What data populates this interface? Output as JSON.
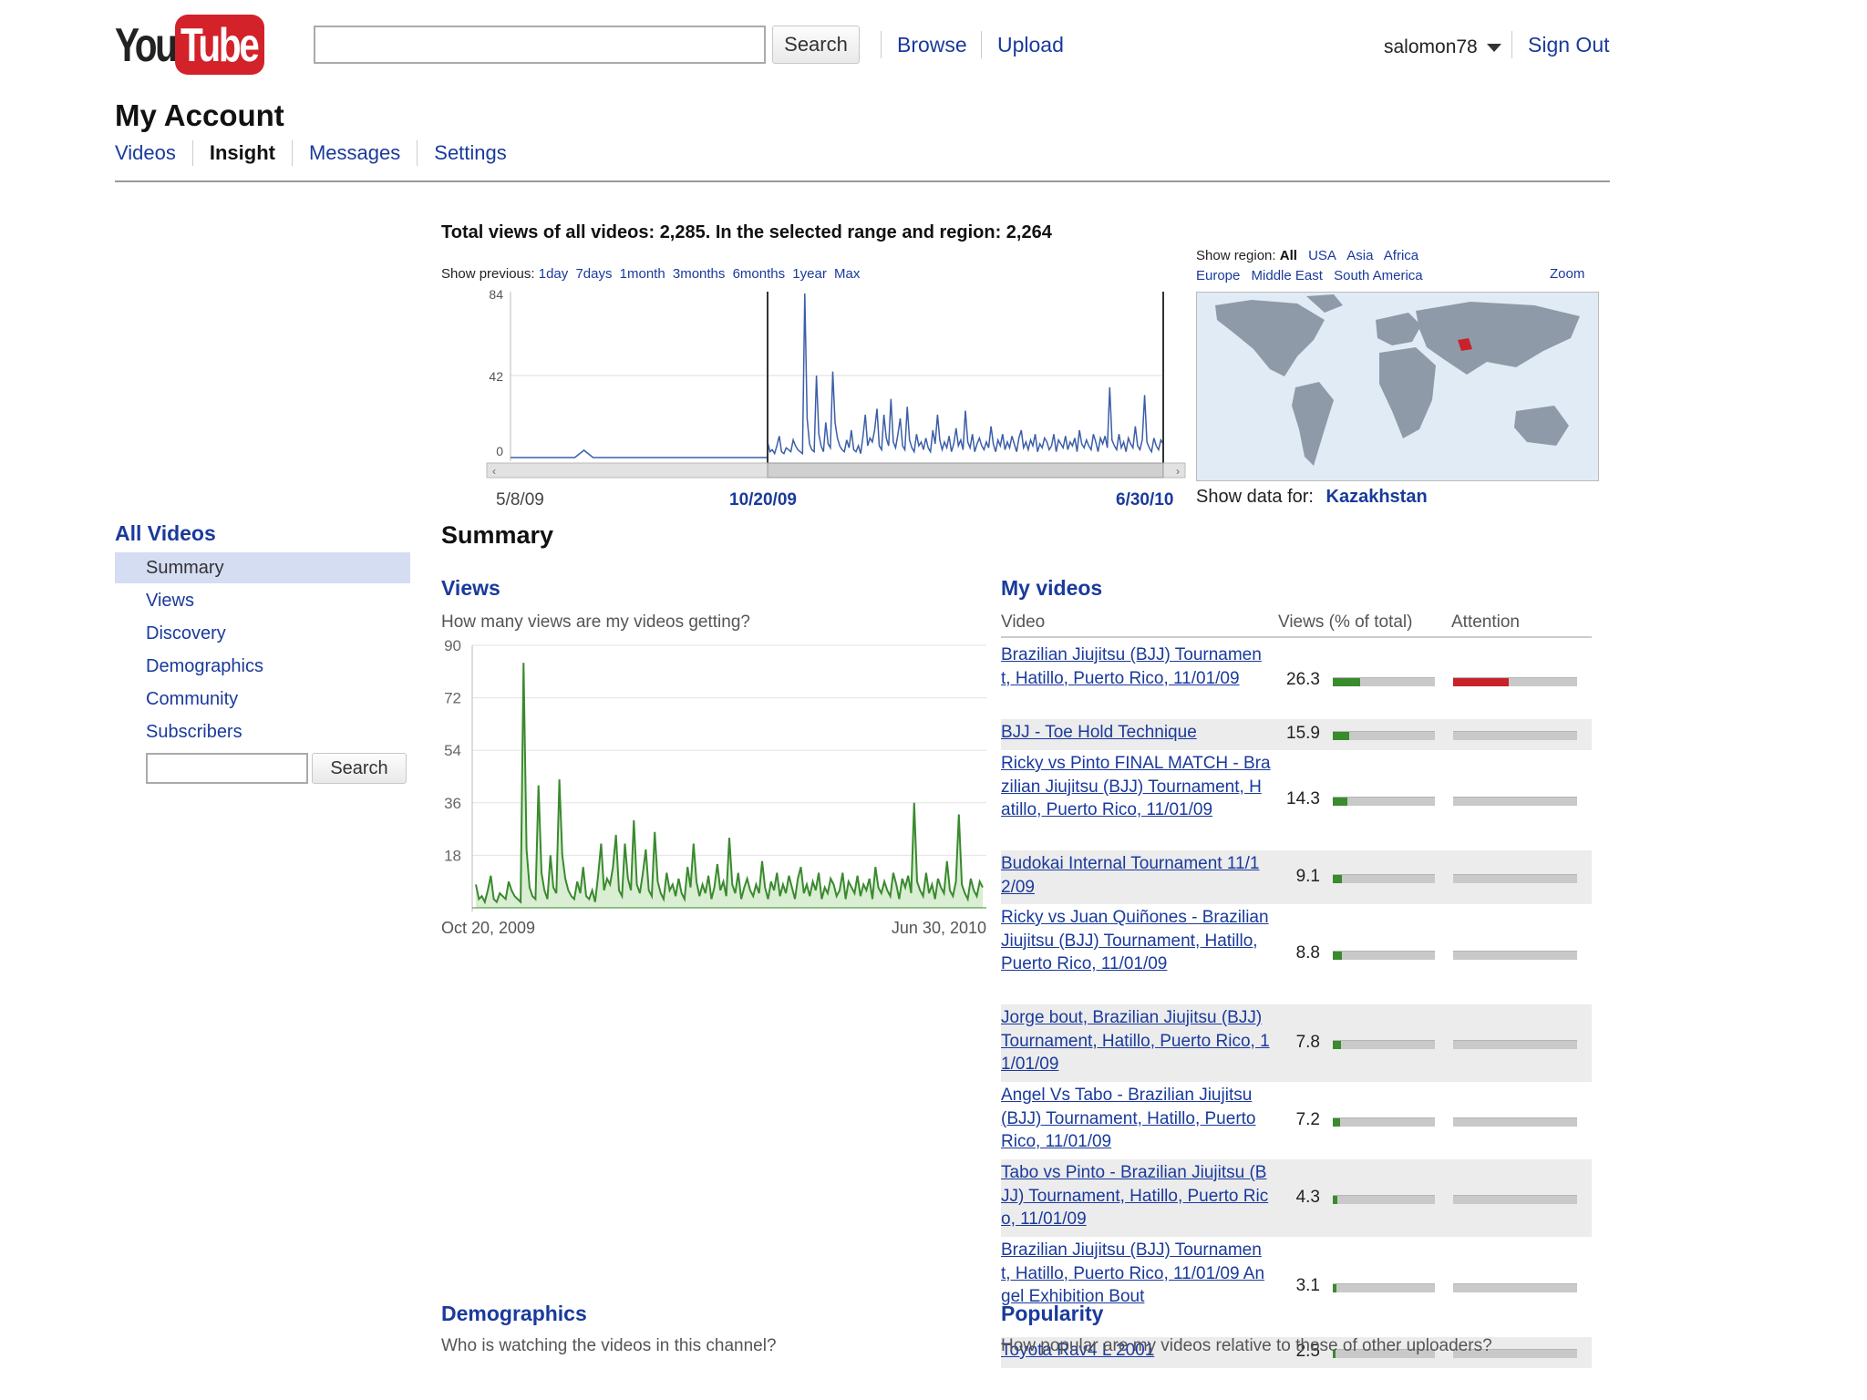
{
  "header": {
    "logo_you": "You",
    "logo_tube": "Tube",
    "search_button": "Search",
    "browse": "Browse",
    "upload": "Upload",
    "username": "salomon78",
    "sign_out": "Sign Out"
  },
  "account": {
    "title": "My Account",
    "tabs": [
      "Videos",
      "Insight",
      "Messages",
      "Settings"
    ],
    "active_tab": "Insight"
  },
  "totals_text": "Total views of all videos:  2,285.  In the selected range and region:  2,264",
  "timeline": {
    "show_previous_label": "Show previous:",
    "ranges": [
      "1day",
      "7days",
      "1month",
      "3months",
      "6months",
      "1year",
      "Max"
    ],
    "y_ticks": [
      "84",
      "42",
      "0"
    ],
    "start_date": "5/8/09",
    "range_start": "10/20/09",
    "range_end": "6/30/10"
  },
  "map": {
    "show_region_label": "Show region:",
    "regions_row1": [
      "All",
      "USA",
      "Asia",
      "Africa"
    ],
    "regions_row2": [
      "Europe",
      "Middle East",
      "South America"
    ],
    "zoom": "Zoom",
    "show_data_label": "Show data for:",
    "show_data_value": "Kazakhstan"
  },
  "sidebar": {
    "heading": "All Videos",
    "items": [
      "Summary",
      "Views",
      "Discovery",
      "Demographics",
      "Community",
      "Subscribers"
    ],
    "active": "Summary",
    "search_button": "Search"
  },
  "summary": {
    "title": "Summary",
    "views_heading": "Views",
    "views_question": "How many views are my videos getting?",
    "demographics_heading": "Demographics",
    "demographics_question": "Who is watching the videos in this channel?",
    "popularity_heading": "Popularity",
    "popularity_question": "How popular are my videos relative to those of other uploaders?"
  },
  "chart_data": {
    "type": "line",
    "ylim": [
      0,
      90
    ],
    "y_ticks": [
      "90",
      "72",
      "54",
      "36",
      "18"
    ],
    "x_labels": [
      "Oct 20, 2009",
      "Jun 30, 2010"
    ],
    "color": "#3a8a2e",
    "fill": "#d9eed3",
    "values": [
      8,
      3,
      4,
      2,
      6,
      11,
      3,
      2,
      5,
      4,
      3,
      9,
      6,
      4,
      3,
      2,
      84,
      20,
      7,
      4,
      3,
      42,
      12,
      6,
      3,
      18,
      7,
      5,
      44,
      18,
      10,
      6,
      4,
      3,
      9,
      5,
      14,
      4,
      3,
      6,
      2,
      11,
      22,
      6,
      10,
      8,
      14,
      25,
      6,
      4,
      22,
      10,
      6,
      30,
      8,
      5,
      12,
      20,
      6,
      4,
      26,
      9,
      5,
      3,
      12,
      6,
      8,
      4,
      10,
      5,
      3,
      14,
      7,
      22,
      9,
      4,
      8,
      5,
      11,
      3,
      7,
      15,
      6,
      9,
      4,
      24,
      8,
      5,
      12,
      3,
      7,
      10,
      6,
      4,
      8,
      5,
      16,
      7,
      3,
      9,
      6,
      12,
      4,
      8,
      5,
      11,
      7,
      3,
      10,
      14,
      5,
      8,
      4,
      9,
      6,
      12,
      3,
      7,
      5,
      10,
      8,
      4,
      6,
      12,
      3,
      9,
      7,
      5,
      11,
      4,
      8,
      6,
      10,
      3,
      14,
      7,
      5,
      9,
      6,
      4,
      12,
      8,
      3,
      10,
      7,
      11,
      5,
      36,
      9,
      6,
      4,
      12,
      5,
      8,
      3,
      10,
      7,
      5,
      16,
      6,
      4,
      9,
      32,
      8,
      5,
      3,
      10,
      6,
      4,
      9,
      7
    ]
  },
  "my_videos": {
    "heading": "My videos",
    "columns": [
      "Video",
      "Views (% of total)",
      "Attention"
    ],
    "rows": [
      {
        "title": "Brazilian Jiujitsu (BJJ) Tournament, Hatillo, Puerto Rico, 11/01/09",
        "views": "26.3",
        "views_pct": 26.3,
        "attention": 0.45,
        "attention_color": "#c8232c"
      },
      {
        "title": "BJJ - Toe Hold Technique",
        "views": "15.9",
        "views_pct": 15.9,
        "attention": 0,
        "attention_color": "#999999"
      },
      {
        "title": "Ricky vs Pinto FINAL MATCH - Brazilian Jiujitsu (BJJ) Tournament, Hatillo, Puerto Rico, 11/01/09",
        "views": "14.3",
        "views_pct": 14.3,
        "attention": 0,
        "attention_color": "#999999"
      },
      {
        "title": "Budokai Internal Tournament 11/12/09",
        "views": "9.1",
        "views_pct": 9.1,
        "attention": 0,
        "attention_color": "#999999"
      },
      {
        "title": "Ricky vs Juan Quiñones - Brazilian Jiujitsu (BJJ) Tournament, Hatillo, Puerto Rico, 11/01/09",
        "views": "8.8",
        "views_pct": 8.8,
        "attention": 0,
        "attention_color": "#999999"
      },
      {
        "title": "Jorge bout, Brazilian Jiujitsu (BJJ) Tournament, Hatillo, Puerto Rico, 11/01/09",
        "views": "7.8",
        "views_pct": 7.8,
        "attention": 0,
        "attention_color": "#999999"
      },
      {
        "title": "Angel Vs Tabo - Brazilian Jiujitsu (BJJ) Tournament, Hatillo, Puerto Rico, 11/01/09",
        "views": "7.2",
        "views_pct": 7.2,
        "attention": 0,
        "attention_color": "#999999"
      },
      {
        "title": "Tabo vs Pinto - Brazilian Jiujitsu (BJJ) Tournament, Hatillo, Puerto Rico, 11/01/09",
        "views": "4.3",
        "views_pct": 4.3,
        "attention": 0,
        "attention_color": "#999999"
      },
      {
        "title": "Brazilian Jiujitsu (BJJ) Tournament, Hatillo, Puerto Rico, 11/01/09 Angel Exhibition Bout",
        "views": "3.1",
        "views_pct": 3.1,
        "attention": 0,
        "attention_color": "#999999"
      },
      {
        "title": "Toyota Rav4 L 2001",
        "views": "2.5",
        "views_pct": 2.5,
        "attention": 0,
        "attention_color": "#999999"
      }
    ]
  },
  "colors": {
    "link": "#1a3a9c",
    "views_bar": "#3a8a2e",
    "timeline_line": "#3b5ea8"
  }
}
